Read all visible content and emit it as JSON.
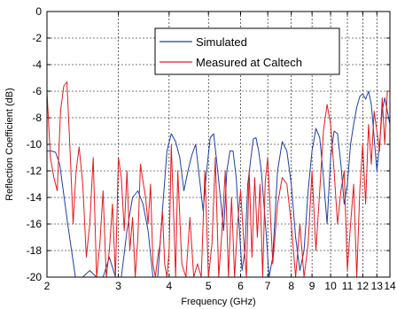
{
  "chart_data": {
    "type": "line",
    "xlabel": "Frequency (GHz)",
    "ylabel": "Reflection Coefficient (dB)",
    "xscale": "log",
    "xlim": [
      2,
      14
    ],
    "ylim": [
      -20,
      0
    ],
    "x_ticks": [
      2,
      3,
      4,
      5,
      6,
      7,
      8,
      9,
      10,
      11,
      12,
      13,
      14
    ],
    "x_tick_labels": [
      "2",
      "3",
      "4",
      "5",
      "6",
      "7",
      "8",
      "9",
      "10",
      "11",
      "12",
      "13",
      "14"
    ],
    "y_ticks": [
      0,
      -2,
      -4,
      -6,
      -8,
      -10,
      -12,
      -14,
      -16,
      -18,
      -20
    ],
    "y_tick_labels": [
      "0",
      "-2",
      "-4",
      "-6",
      "-8",
      "-10",
      "-12",
      "-14",
      "-16",
      "-18",
      "-20"
    ],
    "grid": true,
    "legend_position": "top-right",
    "series": [
      {
        "name": "Simulated",
        "color": "#1f3fa8",
        "x": [
          2.0,
          2.05,
          2.1,
          2.15,
          2.25,
          2.35,
          2.45,
          2.55,
          2.65,
          2.75,
          2.85,
          2.95,
          3.05,
          3.15,
          3.25,
          3.35,
          3.45,
          3.55,
          3.65,
          3.75,
          3.85,
          3.95,
          4.05,
          4.15,
          4.25,
          4.35,
          4.45,
          4.55,
          4.65,
          4.75,
          4.85,
          4.95,
          5.05,
          5.15,
          5.25,
          5.35,
          5.45,
          5.55,
          5.65,
          5.75,
          5.85,
          5.95,
          6.05,
          6.15,
          6.25,
          6.35,
          6.45,
          6.55,
          6.65,
          6.75,
          6.85,
          6.95,
          7.05,
          7.2,
          7.4,
          7.6,
          7.8,
          8.0,
          8.2,
          8.4,
          8.6,
          8.8,
          9.0,
          9.2,
          9.4,
          9.6,
          9.8,
          10.0,
          10.2,
          10.4,
          10.6,
          10.8,
          11.0,
          11.2,
          11.4,
          11.6,
          11.8,
          12.0,
          12.2,
          12.4,
          12.6,
          12.8,
          13.0,
          13.2,
          13.4,
          13.6,
          13.8,
          14.0
        ],
        "y": [
          -10.5,
          -10.5,
          -10.6,
          -11.5,
          -16.0,
          -20.0,
          -20.0,
          -19.5,
          -20.0,
          -20.0,
          -18.5,
          -20.0,
          -20.0,
          -16.5,
          -14.0,
          -13.5,
          -14.5,
          -16.5,
          -20.0,
          -20.0,
          -15.0,
          -10.5,
          -9.2,
          -9.8,
          -11.0,
          -13.5,
          -12.0,
          -10.8,
          -10.0,
          -12.5,
          -15.0,
          -12.0,
          -9.5,
          -9.2,
          -11.5,
          -14.0,
          -16.5,
          -12.0,
          -10.5,
          -10.5,
          -12.5,
          -16.0,
          -19.5,
          -18.0,
          -13.0,
          -11.2,
          -9.6,
          -9.5,
          -10.5,
          -12.0,
          -14.5,
          -17.0,
          -20.0,
          -18.5,
          -12.0,
          -9.8,
          -10.5,
          -13.0,
          -17.0,
          -19.5,
          -18.0,
          -13.5,
          -10.5,
          -8.8,
          -9.5,
          -12.5,
          -16.0,
          -11.0,
          -9.0,
          -9.2,
          -11.5,
          -14.5,
          -13.0,
          -10.0,
          -8.5,
          -7.2,
          -6.4,
          -6.2,
          -6.6,
          -6.0,
          -7.0,
          -9.5,
          -12.0,
          -10.0,
          -7.5,
          -6.5,
          -7.5,
          -8.5
        ]
      },
      {
        "name": "Measured at Caltech",
        "color": "#e31a1c",
        "x": [
          2.0,
          2.04,
          2.08,
          2.12,
          2.16,
          2.2,
          2.24,
          2.28,
          2.32,
          2.36,
          2.4,
          2.45,
          2.5,
          2.55,
          2.6,
          2.65,
          2.7,
          2.75,
          2.8,
          2.85,
          2.9,
          2.95,
          3.0,
          3.05,
          3.1,
          3.15,
          3.2,
          3.25,
          3.3,
          3.35,
          3.4,
          3.45,
          3.5,
          3.55,
          3.6,
          3.65,
          3.7,
          3.75,
          3.8,
          3.85,
          3.9,
          3.95,
          4.0,
          4.05,
          4.1,
          4.15,
          4.2,
          4.3,
          4.4,
          4.5,
          4.6,
          4.7,
          4.8,
          4.9,
          5.0,
          5.1,
          5.2,
          5.3,
          5.4,
          5.5,
          5.6,
          5.7,
          5.8,
          5.9,
          6.0,
          6.1,
          6.2,
          6.3,
          6.4,
          6.5,
          6.6,
          6.7,
          6.8,
          6.9,
          7.0,
          7.2,
          7.4,
          7.6,
          7.8,
          8.0,
          8.2,
          8.4,
          8.6,
          8.8,
          9.0,
          9.2,
          9.4,
          9.6,
          9.8,
          10.0,
          10.2,
          10.4,
          10.6,
          10.8,
          11.0,
          11.2,
          11.4,
          11.6,
          11.8,
          12.0,
          12.2,
          12.4,
          12.6,
          12.8,
          13.0,
          13.2,
          13.4,
          13.6,
          13.8,
          14.0
        ],
        "y": [
          -6.0,
          -11.0,
          -12.5,
          -13.5,
          -7.5,
          -5.6,
          -5.3,
          -10.5,
          -16.0,
          -12.0,
          -10.2,
          -13.0,
          -18.5,
          -16.0,
          -11.0,
          -20.0,
          -17.5,
          -13.5,
          -20.0,
          -18.0,
          -14.5,
          -20.0,
          -11.0,
          -12.5,
          -16.5,
          -12.0,
          -18.0,
          -15.5,
          -20.0,
          -17.0,
          -11.5,
          -12.8,
          -14.0,
          -16.0,
          -13.0,
          -19.0,
          -20.0,
          -18.5,
          -17.5,
          -15.0,
          -19.0,
          -20.0,
          -18.0,
          -10.0,
          -15.0,
          -20.0,
          -12.0,
          -19.0,
          -20.0,
          -15.5,
          -20.0,
          -19.0,
          -20.0,
          -12.0,
          -20.0,
          -17.5,
          -11.0,
          -20.0,
          -16.5,
          -12.0,
          -20.0,
          -14.0,
          -20.0,
          -16.0,
          -13.5,
          -17.0,
          -20.0,
          -12.0,
          -18.5,
          -12.5,
          -17.0,
          -13.0,
          -20.0,
          -12.8,
          -11.0,
          -19.0,
          -14.5,
          -12.5,
          -13.0,
          -16.0,
          -20.0,
          -16.0,
          -20.0,
          -17.5,
          -12.0,
          -18.0,
          -13.5,
          -9.0,
          -7.0,
          -8.5,
          -12.0,
          -16.0,
          -13.5,
          -12.0,
          -19.5,
          -16.0,
          -13.0,
          -20.0,
          -13.5,
          -10.0,
          -14.5,
          -8.5,
          -11.5,
          -7.5,
          -9.0,
          -10.5,
          -6.5,
          -10.0,
          -6.0,
          -6.0
        ]
      }
    ]
  }
}
